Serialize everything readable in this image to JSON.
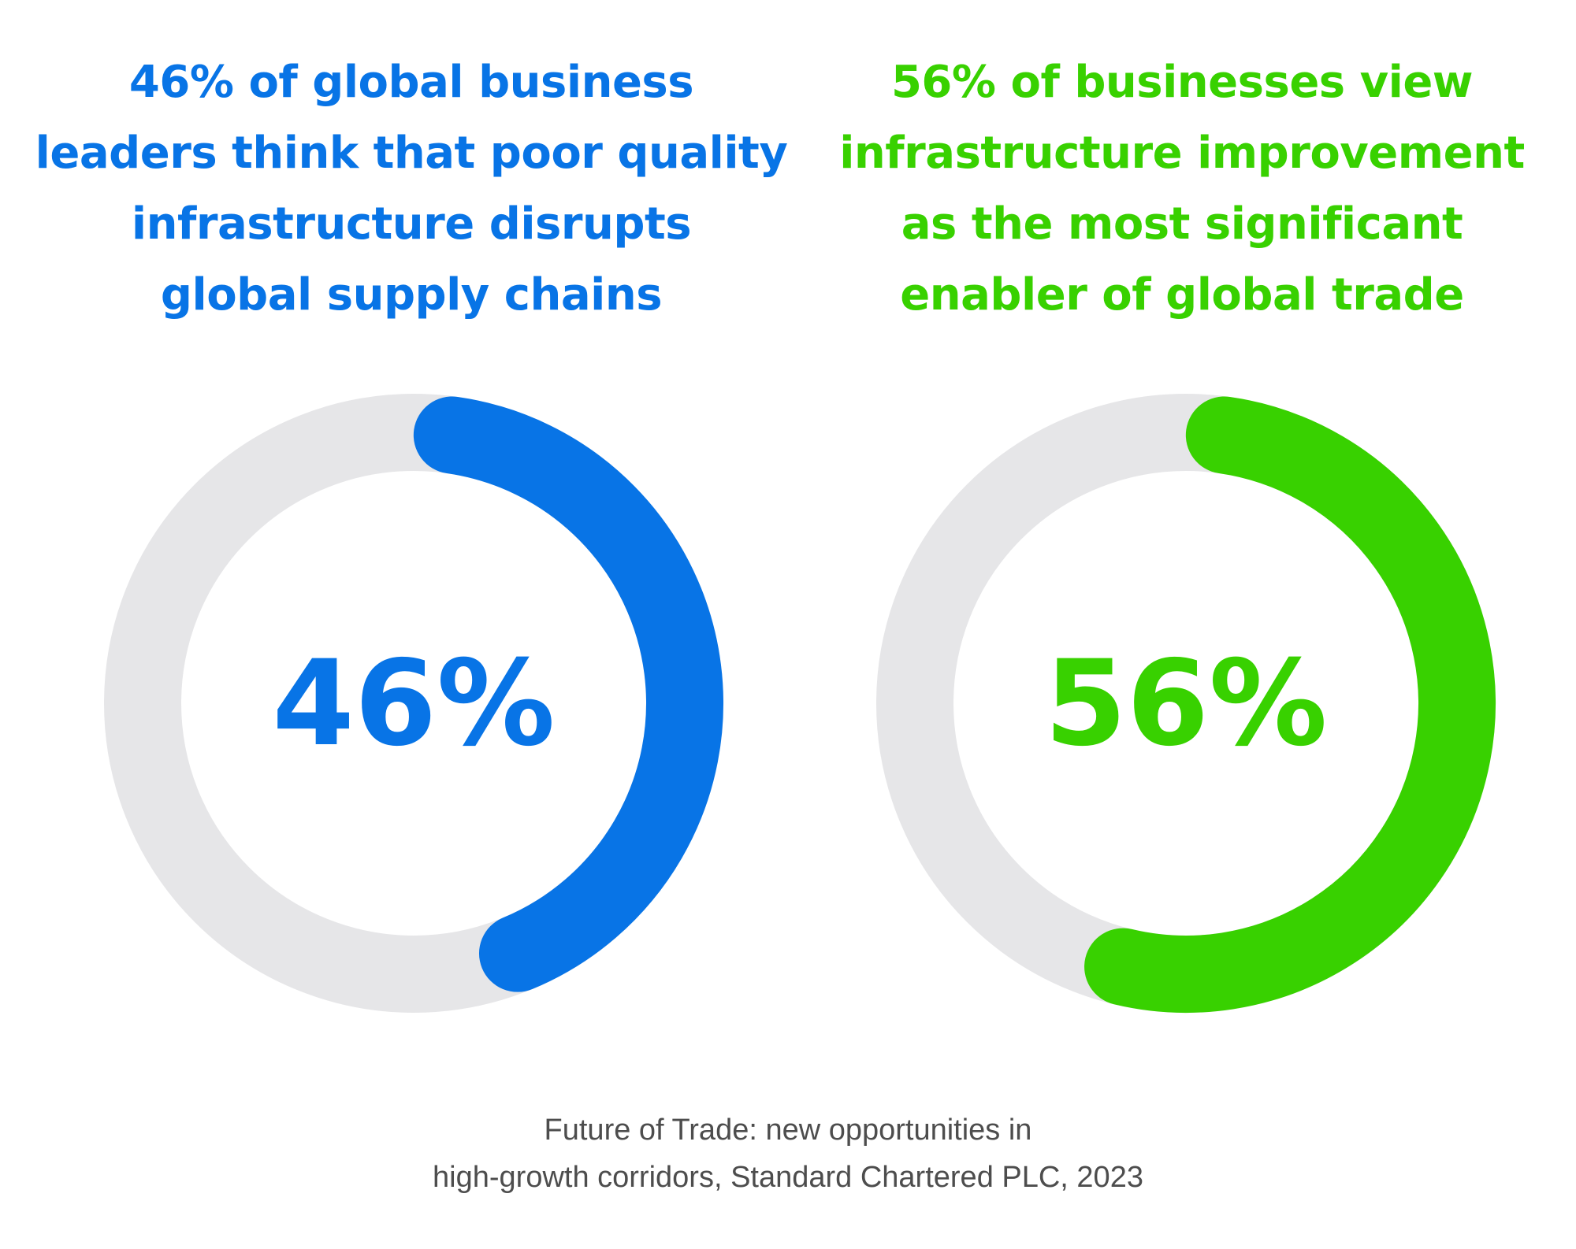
{
  "colors": {
    "track": "#e6e6e8",
    "blue": "#0874e6",
    "green": "#38d100",
    "source_text": "#4d4d4d"
  },
  "chart_data": [
    {
      "type": "pie",
      "style": "donut",
      "value": 46,
      "max": 100,
      "label": "46%",
      "color": "#0874e6",
      "headline_lines": [
        "46% of global business",
        "leaders think that poor quality",
        "infrastructure disrupts",
        "global supply chains"
      ]
    },
    {
      "type": "pie",
      "style": "donut",
      "value": 56,
      "max": 100,
      "label": "56%",
      "color": "#38d100",
      "headline_lines": [
        "56% of businesses view",
        "infrastructure improvement",
        "as the most significant",
        "enabler of global trade"
      ]
    }
  ],
  "source": {
    "line1": "Future of Trade: new opportunities in",
    "line2": "high-growth corridors, Standard Chartered PLC, 2023"
  }
}
